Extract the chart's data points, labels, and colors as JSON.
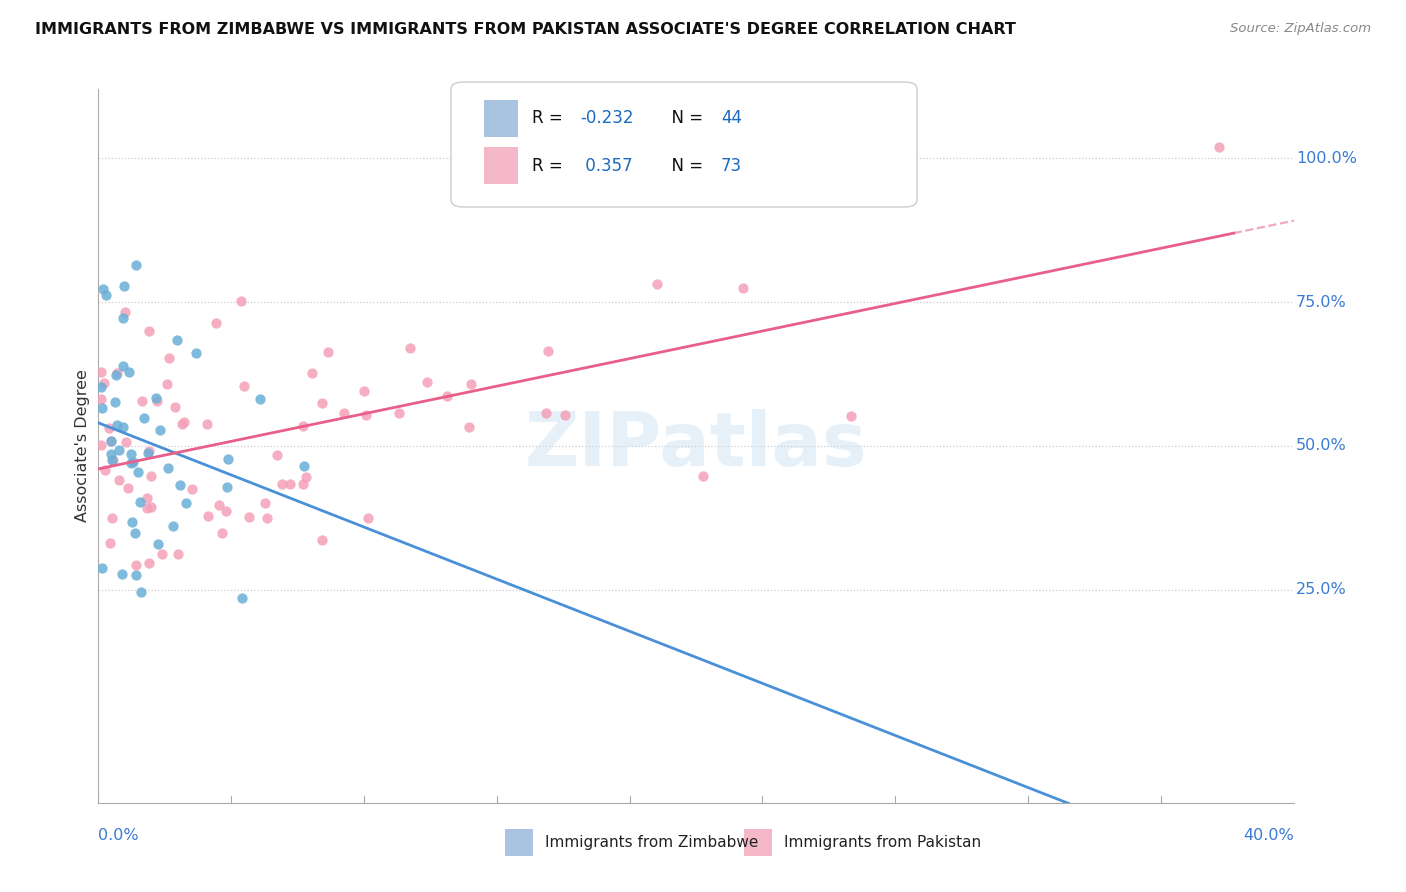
{
  "title": "IMMIGRANTS FROM ZIMBABWE VS IMMIGRANTS FROM PAKISTAN ASSOCIATE'S DEGREE CORRELATION CHART",
  "source": "Source: ZipAtlas.com",
  "ylabel": "Associate's Degree",
  "y_tick_labels": [
    "25.0%",
    "50.0%",
    "75.0%",
    "100.0%"
  ],
  "y_tick_positions": [
    0.25,
    0.5,
    0.75,
    1.0
  ],
  "x_min": 0.0,
  "x_max": 0.4,
  "y_min": -0.12,
  "y_max": 1.12,
  "zimbabwe_color": "#6aaed6",
  "pakistan_color": "#f4a0b8",
  "zimbabwe_line_color": "#4a90d9",
  "pakistan_line_color": "#e8608a",
  "zimbabwe_R": -0.232,
  "zimbabwe_N": 44,
  "pakistan_R": 0.357,
  "pakistan_N": 73,
  "watermark": "ZIPatlas",
  "watermark_color": "#c8dff0",
  "background_color": "#ffffff",
  "legend_box_zim": "#a8c4e0",
  "legend_box_pak": "#f4b8c8",
  "r_value_color": "#1a6bbf",
  "scatter_size": 55,
  "scatter_alpha": 0.85,
  "bottom_legend_zim": "Immigrants from Zimbabwe",
  "bottom_legend_pak": "Immigrants from Pakistan"
}
